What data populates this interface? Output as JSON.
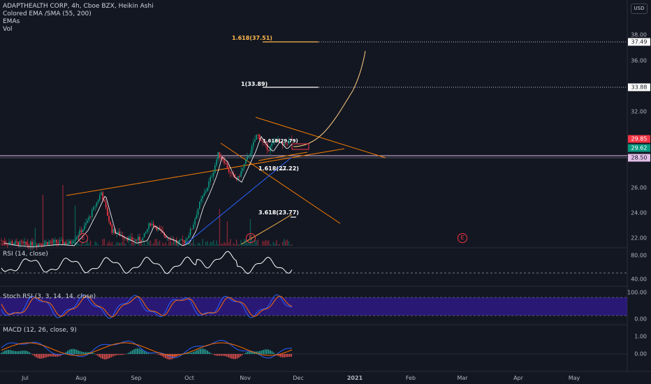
{
  "legend": {
    "title": "ADAPTHEALTH CORP, 4h, Cboe BZX, Heikin Ashi",
    "ind1": "Colored EMA /SMA (55, 200)",
    "ind2": "EMAs",
    "ind3": "Vol"
  },
  "currency": "USD",
  "price_axis": {
    "ticks": [
      "38.00",
      "36.00",
      "32.00",
      "28.00",
      "26.00",
      "24.00",
      "22.00"
    ],
    "badges": [
      {
        "text": "37.49",
        "bg": "#ffffff",
        "fg": "#131722"
      },
      {
        "text": "33.88",
        "bg": "#ffffff",
        "fg": "#131722"
      },
      {
        "text": "29.85",
        "bg": "#f23645",
        "fg": "#ffffff"
      },
      {
        "text": "29.62",
        "bg": "#089981",
        "fg": "#ffffff"
      },
      {
        "text": "28.50",
        "bg": "#e1bee7",
        "fg": "#131722"
      }
    ]
  },
  "fib_labels": {
    "f1": "1.618(37.51)",
    "f2": "1(33.89)",
    "f3": "1.618(27.22)",
    "f4": "3.618(23.77)",
    "f5": "1.618(29.79)"
  },
  "earnings_marker": "E",
  "rsi": {
    "label": "RSI (14, close)",
    "ticks": [
      "80.00",
      "40.00"
    ]
  },
  "stoch": {
    "label": "Stoch RSI (3, 3, 14, 14, close)",
    "ticks": [
      "100.00",
      "0.00"
    ]
  },
  "macd": {
    "label": "MACD (12, 26, close, 9)",
    "ticks": [
      "1.00",
      "0.00"
    ]
  },
  "time_axis": [
    "Jul",
    "Aug",
    "Sep",
    "Oct",
    "Nov",
    "Dec",
    "2021",
    "Feb",
    "Mar",
    "Apr",
    "May"
  ],
  "colors": {
    "bg": "#131722",
    "up": "#089981",
    "down": "#f23645",
    "trend": "#f57c00",
    "fib": "#ffb74d",
    "ema_blue": "#2962ff",
    "rsi": "#ffffff"
  }
}
